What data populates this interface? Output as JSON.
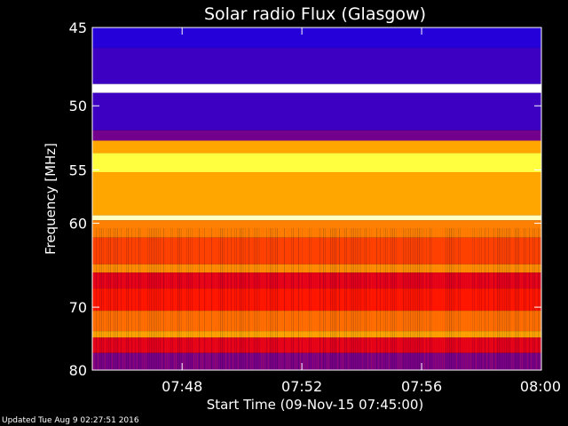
{
  "footer": {
    "updated": "Updated Tue Aug  9 02:27:51 2016"
  },
  "chart_data": {
    "type": "heatmap",
    "title": "Solar radio Flux (Glasgow)",
    "xlabel": "Start Time (09-Nov-15 07:45:00)",
    "ylabel": "Frequency [MHz]",
    "xlim_minutes": [
      0,
      15
    ],
    "ylim": [
      45,
      80
    ],
    "y_scale": "reciprocal",
    "x_ticks": [
      "07:48",
      "07:52",
      "07:56",
      "08:00"
    ],
    "x_tick_minutes": [
      3,
      7,
      11,
      15
    ],
    "y_ticks": [
      45,
      50,
      55,
      60,
      70,
      80
    ],
    "colormap": [
      "#0000ff",
      "#ff0000",
      "#ffff00",
      "#ffffff"
    ],
    "bands": [
      {
        "f0": 45.0,
        "f1": 46.2,
        "level": 0.05
      },
      {
        "f0": 46.2,
        "f1": 48.5,
        "level": 0.08
      },
      {
        "f0": 48.5,
        "f1": 49.1,
        "level": 1.0
      },
      {
        "f0": 49.1,
        "f1": 51.8,
        "level": 0.08
      },
      {
        "f0": 51.8,
        "f1": 52.6,
        "level": 0.15
      },
      {
        "f0": 52.6,
        "f1": 53.6,
        "level": 0.55
      },
      {
        "f0": 53.6,
        "f1": 55.2,
        "level": 0.75
      },
      {
        "f0": 55.2,
        "f1": 59.2,
        "level": 0.55
      },
      {
        "f0": 59.2,
        "f1": 59.7,
        "level": 0.92
      },
      {
        "f0": 59.7,
        "f1": 61.5,
        "level": 0.5
      },
      {
        "f0": 61.5,
        "f1": 64.5,
        "level": 0.42
      },
      {
        "f0": 64.5,
        "f1": 65.5,
        "level": 0.52
      },
      {
        "f0": 65.5,
        "f1": 67.5,
        "level": 0.3
      },
      {
        "f0": 67.5,
        "f1": 70.5,
        "level": 0.36
      },
      {
        "f0": 70.5,
        "f1": 73.5,
        "level": 0.48
      },
      {
        "f0": 73.5,
        "f1": 74.5,
        "level": 0.55
      },
      {
        "f0": 74.5,
        "f1": 77.0,
        "level": 0.3
      },
      {
        "f0": 77.0,
        "f1": 80.0,
        "level": 0.16
      }
    ]
  }
}
